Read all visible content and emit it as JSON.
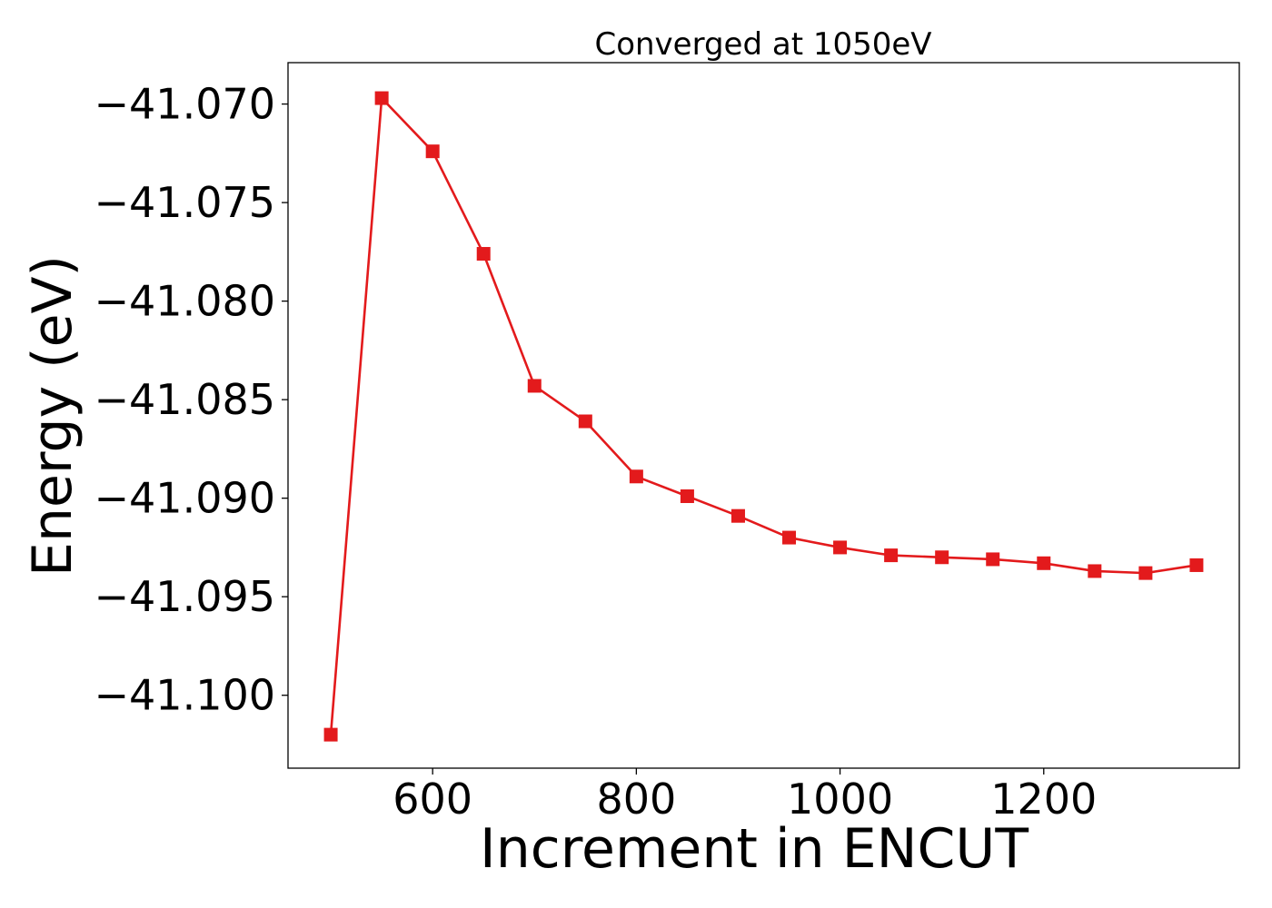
{
  "chart_data": {
    "type": "line",
    "title": "Converged at 1050eV",
    "xlabel": "Increment in ENCUT",
    "ylabel": "Energy (eV)",
    "x": [
      500,
      550,
      600,
      650,
      700,
      750,
      800,
      850,
      900,
      950,
      1000,
      1050,
      1100,
      1150,
      1200,
      1250,
      1300,
      1350
    ],
    "series": [
      {
        "values": [
          -41.102,
          -41.0697,
          -41.0724,
          -41.0776,
          -41.0843,
          -41.0861,
          -41.0889,
          -41.0899,
          -41.0909,
          -41.092,
          -41.0925,
          -41.0929,
          -41.093,
          -41.0931,
          -41.0933,
          -41.0937,
          -41.0938,
          -41.0934
        ],
        "color": "#e31a1c",
        "marker": "square"
      }
    ],
    "xlim": [
      458,
      1392
    ],
    "ylim": [
      -41.1037,
      -41.0679
    ],
    "xticks": [
      600,
      800,
      1000,
      1200
    ],
    "xtick_labels": [
      "600",
      "800",
      "1000",
      "1200"
    ],
    "yticks": [
      -41.07,
      -41.075,
      -41.08,
      -41.085,
      -41.09,
      -41.095,
      -41.1
    ],
    "ytick_labels": [
      "−41.070",
      "−41.075",
      "−41.080",
      "−41.085",
      "−41.090",
      "−41.095",
      "−41.100"
    ],
    "grid": false,
    "legend": "none"
  }
}
